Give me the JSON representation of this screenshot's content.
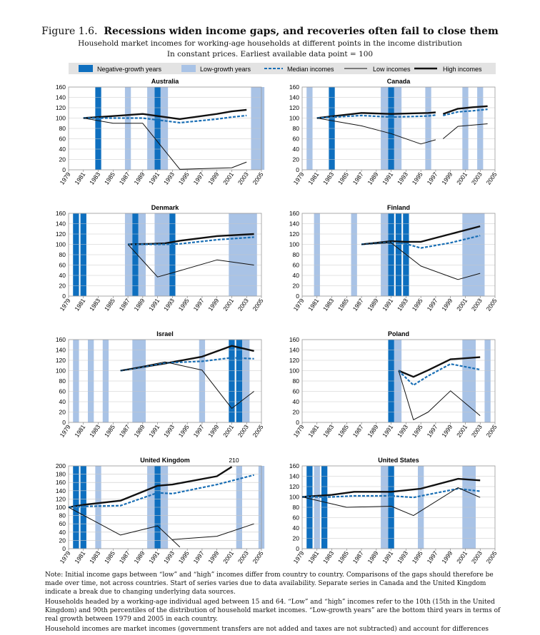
{
  "figure": {
    "number": "Figure 1.6.",
    "title": "Recessions widen income gaps, and recoveries often fail to close them",
    "subtitle1": "Household market incomes for working-age households at different points in the income distribution",
    "subtitle2": "In constant prices. Earliest available data point = 100"
  },
  "legend": {
    "negative": "Negative-growth years",
    "low": "Low-growth years",
    "median": "Median incomes",
    "lowinc": "Low incomes",
    "highinc": "High incomes"
  },
  "colors": {
    "negative": "#0e6fbf",
    "low": "#a9c3e6",
    "median": "#1a6fb5",
    "line": "#111111",
    "legend_bg": "#e3e3e3"
  },
  "notes": [
    "Note: Initial income gaps between “low” and “high” incomes differ from country to country. Comparisons of the gaps should therefore be made over time, not across countries. Start of series varies due to data availability. Separate series in Canada and the United Kingdom indicate a break due to changing underlying data sources.",
    "Households headed by a working-age individual aged between 15 and 64. “Low” and “high” incomes refer to the 10th (15th in the United Kingdom) and 90th percentiles of the distribution of household market incomes. “Low-growth years” are the bottom third years in terms of real growth between 1979 and 2005 in each country.",
    "Household incomes are market incomes (government transfers are not added and taxes are not subtracted) and account for differences"
  ],
  "chart_data": [
    {
      "type": "line",
      "title": "Australia",
      "xlim": [
        1979,
        2005
      ],
      "ylim": [
        0,
        160
      ],
      "yticks": [
        0,
        20,
        40,
        60,
        80,
        100,
        120,
        140,
        160
      ],
      "xticks": [
        "1979",
        "1981",
        "1983",
        "1985",
        "1987",
        "1989",
        "1991",
        "1993",
        "1995",
        "1997",
        "1999",
        "2001",
        "2003",
        "2005"
      ],
      "negative_years": [
        [
          1982.6,
          1983.4
        ],
        [
          1990.6,
          1991.4
        ]
      ],
      "low_years": [
        [
          1986.6,
          1987.4
        ],
        [
          1989.6,
          1990.6
        ],
        [
          1991.4,
          1992.4
        ],
        [
          2003.6,
          2005.4
        ]
      ],
      "series": [
        {
          "key": "high",
          "x": [
            1981,
            1986,
            1989,
            1994,
            1999,
            2001,
            2003
          ],
          "y": [
            100,
            105,
            108,
            98,
            108,
            113,
            116
          ]
        },
        {
          "key": "median",
          "x": [
            1981,
            1986,
            1989,
            1994,
            1999,
            2001,
            2003
          ],
          "y": [
            100,
            100,
            100,
            91,
            98,
            102,
            105
          ]
        },
        {
          "key": "low",
          "x": [
            1981,
            1985,
            1989,
            1994,
            1999,
            2001,
            2003
          ],
          "y": [
            100,
            90,
            90,
            1,
            3,
            4,
            15
          ]
        }
      ],
      "annotation": ""
    },
    {
      "type": "line",
      "title": "Canada",
      "xlim": [
        1979,
        2005
      ],
      "ylim": [
        0,
        160
      ],
      "yticks": [
        0,
        20,
        40,
        60,
        80,
        100,
        120,
        140,
        160
      ],
      "xticks": [
        "1979",
        "1981",
        "1983",
        "1985",
        "1987",
        "1989",
        "1991",
        "1993",
        "1995",
        "1997",
        "1999",
        "2001",
        "2003",
        "2005"
      ],
      "negative_years": [
        [
          1982.6,
          1983.4
        ],
        [
          1990.6,
          1991.4
        ]
      ],
      "low_years": [
        [
          1979.6,
          1980.4
        ],
        [
          1989.6,
          1990.6
        ],
        [
          1991.4,
          1992.4
        ],
        [
          1995.6,
          1996.4
        ],
        [
          2000.6,
          2001.4
        ],
        [
          2002.6,
          2003.4
        ]
      ],
      "series": [
        {
          "key": "high",
          "x": [
            1981,
            1987,
            1991,
            1996,
            1997
          ],
          "y": [
            100,
            110,
            108,
            110,
            111
          ]
        },
        {
          "key": "high",
          "x": [
            1998,
            2000,
            2002,
            2004
          ],
          "y": [
            108,
            118,
            121,
            123
          ]
        },
        {
          "key": "median",
          "x": [
            1981,
            1987,
            1991,
            1996,
            1997
          ],
          "y": [
            100,
            105,
            102,
            104,
            106
          ]
        },
        {
          "key": "median",
          "x": [
            1998,
            2000,
            2002,
            2004
          ],
          "y": [
            105,
            112,
            114,
            117
          ]
        },
        {
          "key": "low",
          "x": [
            1981,
            1987,
            1991,
            1995,
            1997
          ],
          "y": [
            100,
            85,
            70,
            50,
            58
          ]
        },
        {
          "key": "low",
          "x": [
            1998,
            2000,
            2004
          ],
          "y": [
            60,
            84,
            89
          ]
        }
      ],
      "annotation": ""
    },
    {
      "type": "line",
      "title": "Denmark",
      "xlim": [
        1979,
        2005
      ],
      "ylim": [
        0,
        160
      ],
      "yticks": [
        0,
        20,
        40,
        60,
        80,
        100,
        120,
        140,
        160
      ],
      "xticks": [
        "1979",
        "1981",
        "1983",
        "1985",
        "1987",
        "1989",
        "1991",
        "1993",
        "1995",
        "1997",
        "1999",
        "2001",
        "2003",
        "2005"
      ],
      "negative_years": [
        [
          1979.6,
          1980.4
        ],
        [
          1980.6,
          1981.4
        ],
        [
          1987.6,
          1988.4
        ],
        [
          1992.6,
          1993.4
        ]
      ],
      "low_years": [
        [
          1986.6,
          1987.6
        ],
        [
          1988.4,
          1989.4
        ],
        [
          1990.6,
          1992.6
        ],
        [
          2000.6,
          2004.4
        ]
      ],
      "series": [
        {
          "key": "high",
          "x": [
            1987,
            1990,
            1992,
            1994,
            1999,
            2004
          ],
          "y": [
            100,
            101,
            102,
            107,
            116,
            120
          ]
        },
        {
          "key": "median",
          "x": [
            1987,
            1990,
            1992,
            1994,
            1999,
            2004
          ],
          "y": [
            100,
            100,
            100,
            101,
            109,
            114
          ]
        },
        {
          "key": "low",
          "x": [
            1987,
            1991,
            1993,
            1999,
            2004
          ],
          "y": [
            100,
            37,
            45,
            70,
            60
          ]
        }
      ],
      "annotation": ""
    },
    {
      "type": "line",
      "title": "Finland",
      "xlim": [
        1979,
        2005
      ],
      "ylim": [
        0,
        160
      ],
      "yticks": [
        0,
        20,
        40,
        60,
        80,
        100,
        120,
        140,
        160
      ],
      "xticks": [
        "1979",
        "1981",
        "1983",
        "1985",
        "1987",
        "1989",
        "1991",
        "1993",
        "1995",
        "1997",
        "1999",
        "2001",
        "2003",
        "2005"
      ],
      "negative_years": [
        [
          1990.6,
          1991.4
        ],
        [
          1991.6,
          1992.4
        ],
        [
          1992.6,
          1993.4
        ]
      ],
      "low_years": [
        [
          1980.6,
          1981.4
        ],
        [
          1985.6,
          1986.4
        ],
        [
          1989.6,
          1990.6
        ],
        [
          2000.6,
          2003.6
        ]
      ],
      "series": [
        {
          "key": "high",
          "x": [
            1987,
            1991,
            1993,
            1995,
            1999,
            2003
          ],
          "y": [
            100,
            106,
            105,
            105,
            120,
            135
          ]
        },
        {
          "key": "median",
          "x": [
            1987,
            1991,
            1993,
            1995,
            1999,
            2003
          ],
          "y": [
            100,
            104,
            101,
            93,
            103,
            117
          ]
        },
        {
          "key": "low",
          "x": [
            1987,
            1991,
            1995,
            2000,
            2003
          ],
          "y": [
            100,
            103,
            58,
            32,
            44
          ]
        }
      ],
      "annotation": ""
    },
    {
      "type": "line",
      "title": "Israel",
      "xlim": [
        1979,
        2005
      ],
      "ylim": [
        0,
        160
      ],
      "yticks": [
        0,
        20,
        40,
        60,
        80,
        100,
        120,
        140,
        160
      ],
      "xticks": [
        "1979",
        "1981",
        "1983",
        "1985",
        "1987",
        "1989",
        "1991",
        "1993",
        "1995",
        "1997",
        "1999",
        "2001",
        "2003",
        "2005"
      ],
      "negative_years": [
        [
          2000.6,
          2001.4
        ],
        [
          2001.6,
          2002.4
        ]
      ],
      "low_years": [
        [
          1979.6,
          1980.4
        ],
        [
          1981.6,
          1982.4
        ],
        [
          1983.6,
          1984.4
        ],
        [
          1987.6,
          1989.4
        ],
        [
          1996.6,
          1997.4
        ],
        [
          2002.4,
          2003.4
        ]
      ],
      "series": [
        {
          "key": "high",
          "x": [
            1986,
            1992,
            1997,
            2001,
            2004
          ],
          "y": [
            100,
            114,
            127,
            148,
            138
          ]
        },
        {
          "key": "median",
          "x": [
            1986,
            1992,
            1997,
            2001,
            2004
          ],
          "y": [
            100,
            115,
            118,
            125,
            123
          ]
        },
        {
          "key": "low",
          "x": [
            1986,
            1992,
            1997,
            2001,
            2004
          ],
          "y": [
            100,
            117,
            101,
            27,
            60
          ]
        }
      ],
      "annotation": ""
    },
    {
      "type": "line",
      "title": "Poland",
      "xlim": [
        1979,
        2005
      ],
      "ylim": [
        0,
        160
      ],
      "yticks": [
        0,
        20,
        40,
        60,
        80,
        100,
        120,
        140,
        160
      ],
      "xticks": [
        "1979",
        "1981",
        "1983",
        "1985",
        "1987",
        "1989",
        "1991",
        "1993",
        "1995",
        "1997",
        "1999",
        "2001",
        "2003",
        "2005"
      ],
      "negative_years": [
        [
          1990.6,
          1991.4
        ]
      ],
      "low_years": [
        [
          1991.4,
          1992.4
        ],
        [
          2000.6,
          2002.4
        ],
        [
          2003.6,
          2004.4
        ]
      ],
      "series": [
        {
          "key": "high",
          "x": [
            1992,
            1994,
            1996,
            1999,
            2003
          ],
          "y": [
            100,
            88,
            101,
            122,
            126
          ]
        },
        {
          "key": "median",
          "x": [
            1992,
            1994,
            1996,
            1999,
            2003
          ],
          "y": [
            100,
            72,
            90,
            113,
            102
          ]
        },
        {
          "key": "low",
          "x": [
            1992,
            1994,
            1996,
            1999,
            2003
          ],
          "y": [
            100,
            5,
            20,
            61,
            13
          ]
        }
      ],
      "annotation": ""
    },
    {
      "type": "line",
      "title": "United Kingdom",
      "xlim": [
        1979,
        2005
      ],
      "ylim": [
        0,
        200
      ],
      "yticks": [
        0,
        20,
        40,
        60,
        80,
        100,
        120,
        140,
        160,
        180,
        200
      ],
      "xticks": [
        "1979",
        "1981",
        "1983",
        "1985",
        "1987",
        "1989",
        "1991",
        "1993",
        "1995",
        "1997",
        "1999",
        "2001",
        "2003",
        "2005"
      ],
      "negative_years": [
        [
          1979.6,
          1980.4
        ],
        [
          1980.6,
          1981.4
        ],
        [
          1990.6,
          1991.4
        ]
      ],
      "low_years": [
        [
          1982.6,
          1983.4
        ],
        [
          1989.6,
          1990.6
        ],
        [
          1991.4,
          1992.4
        ],
        [
          2001.6,
          2002.4
        ],
        [
          2004.6,
          2005.4
        ]
      ],
      "series": [
        {
          "key": "high",
          "x": [
            1979,
            1981,
            1986,
            1991,
            1993,
            1999,
            2001
          ],
          "y": [
            100,
            106,
            116,
            152,
            155,
            175,
            198
          ]
        },
        {
          "key": "median",
          "x": [
            1979,
            1981,
            1986,
            1991,
            1993,
            1999,
            2004
          ],
          "y": [
            100,
            102,
            104,
            135,
            133,
            155,
            178
          ]
        },
        {
          "key": "low",
          "x": [
            1979,
            1986,
            1991,
            1994
          ],
          "y": [
            100,
            33,
            55,
            4
          ]
        },
        {
          "key": "low",
          "x": [
            1993,
            1999,
            2004
          ],
          "y": [
            22,
            30,
            60
          ]
        }
      ],
      "annotation": "210"
    },
    {
      "type": "line",
      "title": "United States",
      "xlim": [
        1979,
        2005
      ],
      "ylim": [
        0,
        160
      ],
      "yticks": [
        0,
        20,
        40,
        60,
        80,
        100,
        120,
        140,
        160
      ],
      "xticks": [
        "1979",
        "1981",
        "1983",
        "1985",
        "1987",
        "1989",
        "1991",
        "1993",
        "1995",
        "1997",
        "1999",
        "2001",
        "2003",
        "2005"
      ],
      "negative_years": [
        [
          1979.6,
          1980.4
        ],
        [
          1981.6,
          1982.4
        ],
        [
          1990.6,
          1991.4
        ]
      ],
      "low_years": [
        [
          1980.6,
          1981.4
        ],
        [
          1989.6,
          1990.6
        ],
        [
          1994.6,
          1995.4
        ],
        [
          2000.6,
          2002.4
        ]
      ],
      "series": [
        {
          "key": "high",
          "x": [
            1979,
            1983,
            1986,
            1991,
            1995,
            2000,
            2003
          ],
          "y": [
            100,
            104,
            110,
            110,
            116,
            135,
            132
          ]
        },
        {
          "key": "median",
          "x": [
            1979,
            1983,
            1986,
            1991,
            1994,
            2000,
            2003
          ],
          "y": [
            100,
            100,
            102,
            102,
            99,
            116,
            111
          ]
        },
        {
          "key": "low",
          "x": [
            1979,
            1985,
            1991,
            1994,
            2000,
            2003
          ],
          "y": [
            100,
            80,
            82,
            64,
            118,
            99
          ]
        }
      ],
      "annotation": ""
    }
  ]
}
